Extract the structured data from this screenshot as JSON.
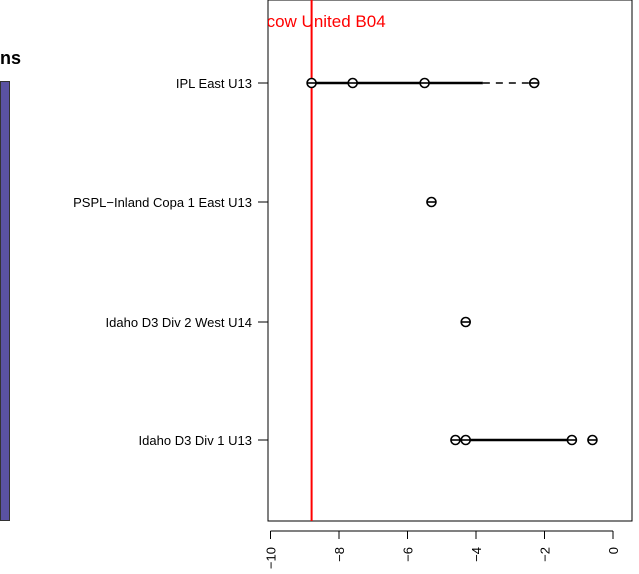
{
  "left_panel": {
    "title_fragment": "ns",
    "bar_color": "#5a52a3"
  },
  "chart_data": {
    "type": "scatter",
    "orientation": "horizontal",
    "title": "cow United B04",
    "xlim": [
      -10.8,
      0.8
    ],
    "xticks": [
      -10,
      -8,
      -6,
      -4,
      -2,
      0
    ],
    "xtick_labels": [
      "−10",
      "−8",
      "−6",
      "−4",
      "−2",
      "0"
    ],
    "reference_line": {
      "value": -8.8,
      "color": "#ff0000"
    },
    "categories": [
      "IPL East U13",
      "PSPL−Inland Copa 1 East U13",
      "Idaho D3 Div 2 West U14",
      "Idaho D3 Div 1 U13"
    ],
    "series": [
      {
        "category": "IPL East U13",
        "points": [
          -8.8,
          -7.6,
          -5.5,
          -2.3
        ],
        "solid_range": [
          -8.8,
          -3.8
        ],
        "dashed_range": [
          -3.8,
          -2.3
        ]
      },
      {
        "category": "PSPL−Inland Copa 1 East U13",
        "points": [
          -5.3
        ],
        "solid_range": null,
        "dashed_range": null
      },
      {
        "category": "Idaho D3 Div 2 West U14",
        "points": [
          -4.3
        ],
        "solid_range": null,
        "dashed_range": null
      },
      {
        "category": "Idaho D3 Div 1 U13",
        "points": [
          -4.6,
          -4.3,
          -1.2,
          -0.6
        ],
        "solid_range": [
          -4.6,
          -1.2
        ],
        "dashed_range": null
      }
    ],
    "grid": false,
    "legend": "none"
  }
}
